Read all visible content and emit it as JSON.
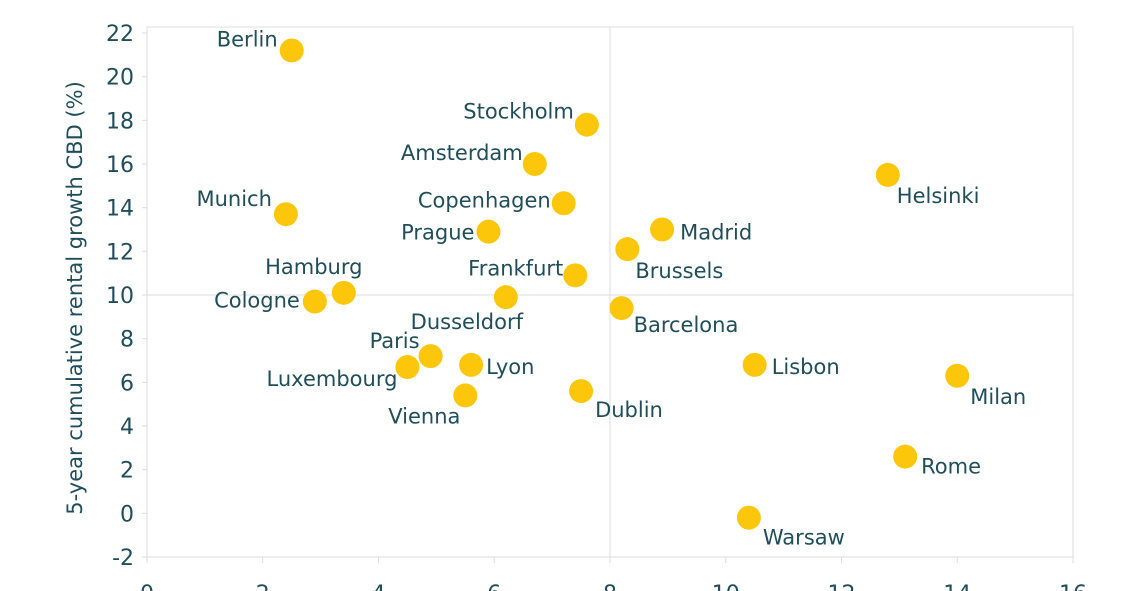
{
  "chart_data": {
    "type": "scatter",
    "y_label": "5-year cumulative rental growth CBD (%)",
    "color": "#fcc60a",
    "labels": [
      "Berlin",
      "Munich",
      "Hamburg",
      "Cologne",
      "Stockholm",
      "Amsterdam",
      "Copenhagen",
      "Prague",
      "Frankfurt",
      "Dusseldorf",
      "Paris",
      "Luxembourg",
      "Lyon",
      "Vienna",
      "Dublin",
      "Madrid",
      "Brussels",
      "Barcelona",
      "Lisbon",
      "Warsaw",
      "Helsinki",
      "Milan",
      "Rome"
    ],
    "x": [
      2.5,
      2.4,
      3.4,
      2.9,
      7.6,
      6.7,
      7.2,
      5.9,
      7.4,
      6.2,
      4.9,
      4.5,
      5.6,
      5.5,
      7.5,
      8.9,
      8.3,
      8.2,
      10.5,
      10.4,
      12.8,
      14.0,
      13.1
    ],
    "y": [
      21.2,
      13.7,
      10.1,
      9.7,
      17.8,
      16.0,
      14.2,
      12.9,
      10.9,
      9.9,
      7.2,
      6.7,
      6.8,
      5.4,
      5.6,
      13.0,
      12.1,
      9.4,
      6.8,
      -0.2,
      15.5,
      6.3,
      2.6
    ],
    "xlim": [
      0,
      16
    ],
    "xticks": [
      0,
      2,
      4,
      6,
      8,
      10,
      12,
      14,
      16
    ],
    "ylim": [
      -2,
      22
    ],
    "yticks": [
      -2,
      0,
      2,
      4,
      6,
      8,
      10,
      12,
      14,
      16,
      18,
      20,
      22
    ],
    "reference_lines": {
      "x": 8,
      "y": 10
    }
  }
}
